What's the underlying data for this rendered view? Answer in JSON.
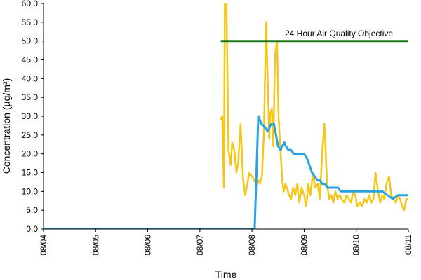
{
  "chart_data": {
    "type": "line",
    "xlabel": "Time",
    "ylabel": "Concentration (µg/m³)",
    "ylim": [
      0,
      60
    ],
    "yticks": [
      "0.0",
      "5.0",
      "10.0",
      "15.0",
      "20.0",
      "25.0",
      "30.0",
      "35.0",
      "40.0",
      "45.0",
      "50.0",
      "55.0",
      "60.0"
    ],
    "xlim": [
      0,
      7
    ],
    "xticks": [
      "08/04",
      "08/05",
      "08/06",
      "08/07",
      "08/08",
      "08/09",
      "08/10",
      "08/11"
    ],
    "grid": false,
    "legend": "none",
    "annotation": "24 Hour Air Quality Objective",
    "series": [
      {
        "color": "#f5c518",
        "x": [
          3.4,
          3.43,
          3.46,
          3.48,
          3.51,
          3.55,
          3.59,
          3.62,
          3.66,
          3.7,
          3.74,
          3.78,
          3.83,
          3.87,
          3.91,
          3.95,
          4.0,
          4.04,
          4.08,
          4.12,
          4.15,
          4.19,
          4.23,
          4.27,
          4.31,
          4.33,
          4.35,
          4.38,
          4.41,
          4.44,
          4.48,
          4.51,
          4.55,
          4.58,
          4.61,
          4.64,
          4.67,
          4.71,
          4.75,
          4.79,
          4.83,
          4.87,
          4.91,
          4.95,
          5.0,
          5.04,
          5.08,
          5.12,
          5.17,
          5.21,
          5.26,
          5.3,
          5.35,
          5.39,
          5.44,
          5.48,
          5.52,
          5.56,
          5.6,
          5.64,
          5.68,
          5.72,
          5.77,
          5.81,
          5.86,
          5.9,
          5.94,
          5.98,
          6.02,
          6.07,
          6.11,
          6.16,
          6.2,
          6.25,
          6.29,
          6.33,
          6.37,
          6.42,
          6.46,
          6.5,
          6.54,
          6.58,
          6.63,
          6.67,
          6.72,
          6.76,
          6.8,
          6.84,
          6.88,
          6.92,
          6.96,
          7.0
        ],
        "values": [
          29,
          30,
          11,
          62,
          60,
          21,
          17,
          23,
          21,
          15,
          18,
          28,
          13,
          9,
          12,
          15,
          14,
          13,
          12,
          13,
          12,
          14,
          26,
          55,
          35,
          24,
          31,
          32,
          22,
          46,
          50,
          30,
          20,
          13,
          10,
          12,
          11,
          9,
          8,
          11,
          9,
          12,
          7,
          11,
          9,
          6,
          12,
          9,
          15,
          11,
          12,
          8,
          21,
          28,
          12,
          8,
          9,
          7,
          10,
          8,
          9,
          8,
          7,
          9,
          8,
          7,
          10,
          9,
          6,
          7,
          6,
          8,
          7,
          9,
          7,
          8,
          15,
          10,
          7,
          9,
          8,
          12,
          14,
          9,
          8,
          7,
          9,
          8,
          6,
          5,
          8,
          8
        ]
      },
      {
        "color": "#29a3e0",
        "x": [
          0,
          4.05,
          4.12,
          4.18,
          4.25,
          4.3,
          4.37,
          4.42,
          4.5,
          4.55,
          4.58,
          4.62,
          4.65,
          4.7,
          4.75,
          4.8,
          4.85,
          5.0,
          5.05,
          5.1,
          5.15,
          5.2,
          5.25,
          5.3,
          5.35,
          5.4,
          5.45,
          5.5,
          5.55,
          5.6,
          5.65,
          5.7,
          5.75,
          5.9,
          5.95,
          6.0,
          6.5,
          6.6,
          6.7,
          6.8,
          6.9,
          7.0
        ],
        "values": [
          0,
          0,
          30,
          28,
          27,
          26,
          28,
          28,
          22,
          21,
          22,
          23,
          22,
          21,
          21,
          20,
          20,
          20,
          19,
          17,
          15,
          14,
          13,
          13,
          12,
          12,
          11,
          11,
          11,
          11,
          11,
          10,
          10,
          10,
          10,
          10,
          10,
          9,
          8,
          9,
          9,
          9
        ]
      },
      {
        "color": "#1a7a1a",
        "x": [
          3.4,
          7.0
        ],
        "values": [
          50,
          50
        ]
      }
    ]
  }
}
